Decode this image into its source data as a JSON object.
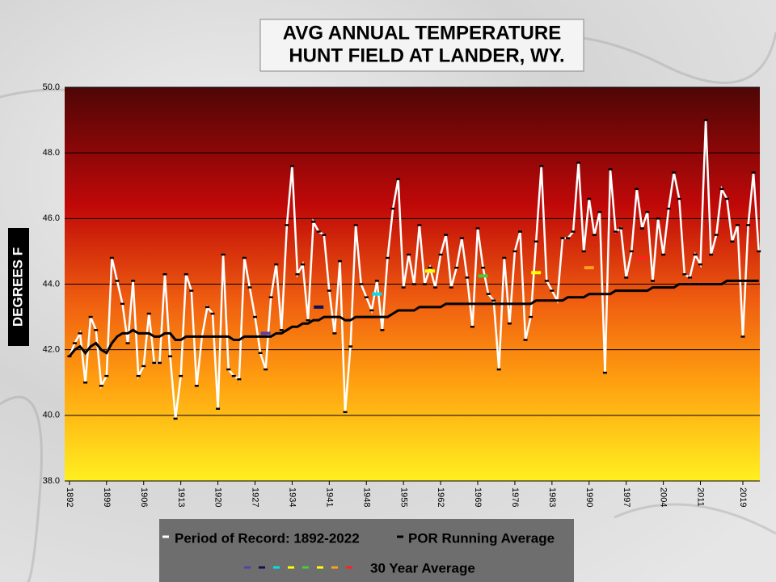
{
  "chart_data": {
    "type": "line",
    "title": "AVG ANNUAL TEMPERATURE",
    "subtitle": "HUNT FIELD AT LANDER, WY.",
    "y_label": "DEGREES F",
    "xlim": [
      1891.1,
      2022.2
    ],
    "xticks": [
      1892,
      1899,
      1906,
      1913,
      1920,
      1927,
      1934,
      1941,
      1948,
      1955,
      1962,
      1969,
      1976,
      1983,
      1990,
      1997,
      2004,
      2011,
      2019
    ],
    "ylim": [
      38,
      50
    ],
    "yticks": [
      {
        "value": 38,
        "label": "38.0"
      },
      {
        "value": 40,
        "label": "40.0"
      },
      {
        "value": 42,
        "label": "42.0"
      },
      {
        "value": 44,
        "label": "44.0"
      },
      {
        "value": 46,
        "label": "46.0"
      },
      {
        "value": 48,
        "label": "48.0"
      },
      {
        "value": 50,
        "label": "50.0"
      }
    ],
    "grid": true,
    "x": [
      1892,
      1893,
      1894,
      1895,
      1896,
      1897,
      1898,
      1899,
      1900,
      1901,
      1902,
      1903,
      1904,
      1905,
      1906,
      1907,
      1908,
      1909,
      1910,
      1911,
      1912,
      1913,
      1914,
      1915,
      1916,
      1917,
      1918,
      1919,
      1920,
      1921,
      1922,
      1923,
      1924,
      1925,
      1926,
      1927,
      1928,
      1929,
      1930,
      1931,
      1932,
      1933,
      1934,
      1935,
      1936,
      1937,
      1938,
      1939,
      1940,
      1941,
      1942,
      1943,
      1944,
      1945,
      1946,
      1947,
      1948,
      1949,
      1950,
      1951,
      1952,
      1953,
      1954,
      1955,
      1956,
      1957,
      1958,
      1959,
      1960,
      1961,
      1962,
      1963,
      1964,
      1965,
      1966,
      1967,
      1968,
      1969,
      1970,
      1971,
      1972,
      1973,
      1974,
      1975,
      1976,
      1977,
      1978,
      1979,
      1980,
      1981,
      1982,
      1983,
      1984,
      1985,
      1986,
      1987,
      1988,
      1989,
      1990,
      1991,
      1992,
      1993,
      1994,
      1995,
      1996,
      1997,
      1998,
      1999,
      2000,
      2001,
      2002,
      2003,
      2004,
      2005,
      2006,
      2007,
      2008,
      2009,
      2010,
      2011,
      2012,
      2013,
      2014,
      2015,
      2016,
      2017,
      2018,
      2019,
      2020,
      2021,
      2022
    ],
    "series": [
      {
        "name": "Period of Record: 1892-2022",
        "color": "#ffffff",
        "values": [
          41.8,
          42.2,
          42.5,
          41.0,
          43.0,
          42.6,
          40.9,
          41.2,
          44.8,
          44.1,
          43.4,
          42.2,
          44.1,
          41.2,
          41.5,
          43.1,
          41.6,
          41.6,
          44.3,
          41.8,
          39.9,
          41.2,
          44.3,
          43.8,
          40.9,
          42.4,
          43.3,
          43.1,
          40.2,
          44.9,
          41.4,
          41.2,
          41.1,
          44.8,
          43.9,
          43.0,
          41.9,
          41.4,
          43.6,
          44.6,
          42.6,
          45.8,
          47.6,
          44.3,
          44.6,
          42.9,
          45.9,
          45.6,
          45.5,
          43.8,
          42.5,
          44.7,
          40.1,
          42.1,
          45.8,
          44.0,
          43.6,
          43.2,
          44.1,
          42.6,
          44.8,
          46.3,
          47.2,
          43.9,
          44.9,
          44.0,
          45.8,
          44.0,
          44.5,
          43.9,
          44.9,
          45.5,
          43.9,
          44.5,
          45.4,
          44.2,
          42.7,
          45.7,
          44.5,
          43.7,
          43.5,
          41.4,
          44.8,
          42.8,
          45.0,
          45.6,
          42.3,
          43.0,
          45.3,
          47.6,
          44.1,
          43.8,
          43.5,
          45.4,
          45.4,
          45.6,
          47.7,
          45.0,
          46.6,
          45.5,
          46.2,
          41.3,
          47.5,
          45.6,
          45.7,
          44.2,
          45.0,
          46.9,
          45.7,
          46.2,
          44.1,
          46.0,
          44.9,
          46.3,
          47.4,
          46.6,
          44.3,
          44.2,
          44.9,
          44.6,
          49.0,
          44.9,
          45.5,
          46.9,
          46.6,
          45.3,
          45.8,
          42.4,
          45.8,
          47.4,
          45.0
        ]
      },
      {
        "name": "POR Running Average",
        "color": "#000000",
        "values": [
          41.8,
          42.0,
          42.1,
          41.9,
          42.1,
          42.2,
          42.0,
          41.9,
          42.2,
          42.4,
          42.5,
          42.5,
          42.6,
          42.5,
          42.5,
          42.5,
          42.4,
          42.4,
          42.5,
          42.5,
          42.3,
          42.3,
          42.4,
          42.4,
          42.4,
          42.4,
          42.4,
          42.4,
          42.4,
          42.4,
          42.4,
          42.3,
          42.3,
          42.4,
          42.4,
          42.4,
          42.4,
          42.4,
          42.4,
          42.5,
          42.5,
          42.6,
          42.7,
          42.7,
          42.8,
          42.8,
          42.9,
          42.9,
          43.0,
          43.0,
          43.0,
          43.0,
          42.9,
          42.9,
          43.0,
          43.0,
          43.0,
          43.0,
          43.0,
          43.0,
          43.0,
          43.1,
          43.2,
          43.2,
          43.2,
          43.2,
          43.3,
          43.3,
          43.3,
          43.3,
          43.3,
          43.4,
          43.4,
          43.4,
          43.4,
          43.4,
          43.4,
          43.4,
          43.4,
          43.4,
          43.4,
          43.4,
          43.4,
          43.4,
          43.4,
          43.4,
          43.4,
          43.4,
          43.5,
          43.5,
          43.5,
          43.5,
          43.5,
          43.5,
          43.6,
          43.6,
          43.6,
          43.6,
          43.7,
          43.7,
          43.7,
          43.7,
          43.7,
          43.8,
          43.8,
          43.8,
          43.8,
          43.8,
          43.8,
          43.8,
          43.9,
          43.9,
          43.9,
          43.9,
          43.9,
          44.0,
          44.0,
          44.0,
          44.0,
          44.0,
          44.0,
          44.0,
          44.0,
          44.0,
          44.1,
          44.1,
          44.1,
          44.1,
          44.1,
          44.1,
          44.1
        ]
      }
    ],
    "thirty_year": {
      "name": "30 Year Average",
      "x": [
        1929,
        1939,
        1950,
        1960,
        1970,
        1980,
        1990,
        2000
      ],
      "values": [
        42.5,
        43.3,
        43.7,
        44.4,
        44.25,
        44.35,
        44.5,
        44.8
      ],
      "colors": [
        "#5a3fa8",
        "#101058",
        "#00e0f0",
        "#ffff00",
        "#40d040",
        "#ffff00",
        "#ffa020",
        "#ff2020"
      ]
    }
  }
}
